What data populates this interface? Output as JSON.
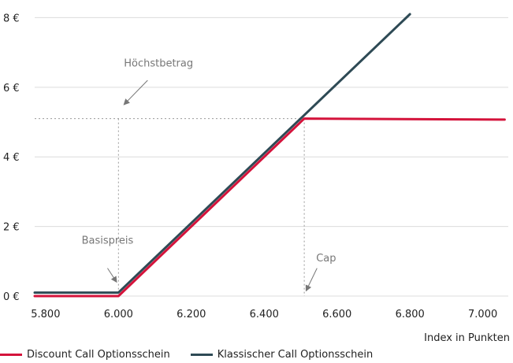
{
  "chart_data": {
    "type": "line",
    "title": "",
    "xlabel": "Index in Punkten",
    "ylabel": "",
    "xlim": [
      5770,
      7070
    ],
    "ylim": [
      0,
      8.1
    ],
    "x_ticks": [
      {
        "value": 5800,
        "label": "5.800"
      },
      {
        "value": 6000,
        "label": "6.000"
      },
      {
        "value": 6200,
        "label": "6.200"
      },
      {
        "value": 6400,
        "label": "6.400"
      },
      {
        "value": 6600,
        "label": "6.600"
      },
      {
        "value": 6800,
        "label": "6.800"
      },
      {
        "value": 7000,
        "label": "7.000"
      }
    ],
    "y_ticks": [
      {
        "value": 0,
        "label": "0 €"
      },
      {
        "value": 2,
        "label": "2 €"
      },
      {
        "value": 4,
        "label": "4 €"
      },
      {
        "value": 6,
        "label": "6 €"
      },
      {
        "value": 8,
        "label": "8 €"
      }
    ],
    "grid": "horizontal",
    "legend_position": "bottom-left",
    "series": [
      {
        "name": "Klassischer Call Optionsschein",
        "color": "#2e4a55",
        "points": [
          [
            5770,
            0.1
          ],
          [
            6000,
            0.1
          ],
          [
            6800,
            8.1
          ]
        ]
      },
      {
        "name": "Discount Call Optionsschein",
        "color": "#d4133b",
        "points": [
          [
            5770,
            0.0
          ],
          [
            6000,
            0.0
          ],
          [
            6510,
            5.1
          ],
          [
            7060,
            5.07
          ]
        ]
      }
    ],
    "annotations": [
      {
        "label": "Höchstbetrag",
        "type": "guide",
        "guide_x": 6000,
        "guide_y": 5.1,
        "text_at": [
          6110,
          6.6
        ],
        "arrow_from": [
          6080,
          6.2
        ],
        "arrow_to": [
          6015,
          5.5
        ]
      },
      {
        "label": "Basispreis",
        "type": "arrow",
        "text_at": [
          5970,
          1.5
        ],
        "arrow_from": [
          5970,
          0.8
        ],
        "arrow_to": [
          5995,
          0.4
        ]
      },
      {
        "label": "Cap",
        "type": "guide",
        "guide_x": 6510,
        "guide_y": 5.1,
        "text_at": [
          6570,
          1.0
        ],
        "arrow_from": [
          6545,
          0.8
        ],
        "arrow_to": [
          6515,
          0.15
        ]
      }
    ]
  }
}
